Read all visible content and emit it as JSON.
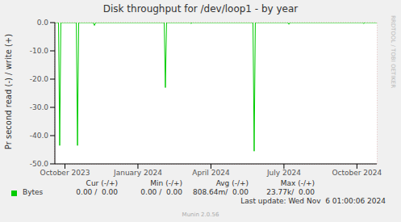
{
  "chart_data": {
    "type": "line",
    "title": "Disk throughput for /dev/loop1 - by year",
    "y_label": "Pr second read (-) / write (+)",
    "x": [
      2023.7155,
      2023.728,
      2023.732,
      2023.736,
      2023.789,
      2023.793,
      2023.797,
      2023.847,
      2023.851,
      2023.855,
      2024.09,
      2024.094,
      2024.098,
      2024.178,
      2024.182,
      2024.186,
      2024.394,
      2024.398,
      2024.402,
      2024.513,
      2024.517,
      2024.521,
      2024.769,
      2024.773,
      2024.777,
      2024.818
    ],
    "series": [
      {
        "name": "Bytes",
        "color": "#00cc00",
        "values": [
          0,
          0,
          -43.5,
          0,
          0,
          -43.5,
          0,
          0,
          -1,
          0,
          0,
          -23,
          0,
          0,
          -0.3,
          0,
          0,
          -45.5,
          0,
          0,
          -0.6,
          0,
          0,
          -0.3,
          0,
          0
        ]
      }
    ],
    "xlim": [
      2023.7155,
      2024.818
    ],
    "xticks": [
      {
        "value": 2023.75,
        "label": "October 2023"
      },
      {
        "value": 2024.0,
        "label": "January 2024"
      },
      {
        "value": 2024.25,
        "label": "April 2024"
      },
      {
        "value": 2024.5,
        "label": "July 2024"
      },
      {
        "value": 2024.75,
        "label": "October 2024"
      }
    ],
    "ylim": [
      -50,
      0
    ],
    "yticks": [
      {
        "value": -50,
        "label": "-50.0"
      },
      {
        "value": -40,
        "label": "-40.0"
      },
      {
        "value": -30,
        "label": "-30.0"
      },
      {
        "value": -20,
        "label": "-20.0"
      },
      {
        "value": -10,
        "label": "-10.0"
      },
      {
        "value": 0,
        "label": "0.0"
      }
    ],
    "grid": true,
    "stats": {
      "headers": [
        "Cur (-/+)",
        "Min (-/+)",
        "Avg (-/+)",
        "Max (-/+)"
      ],
      "Bytes": [
        "0.00 /  0.00",
        "0.00 /  0.00",
        "808.64m/  0.00",
        "23.77k/  0.00"
      ]
    },
    "footer": "Last update: Wed Nov  6 01:00:06 2024",
    "credit": "Munin 2.0.56",
    "watermark": "RRDTOOL / TOBI OETIKER"
  }
}
